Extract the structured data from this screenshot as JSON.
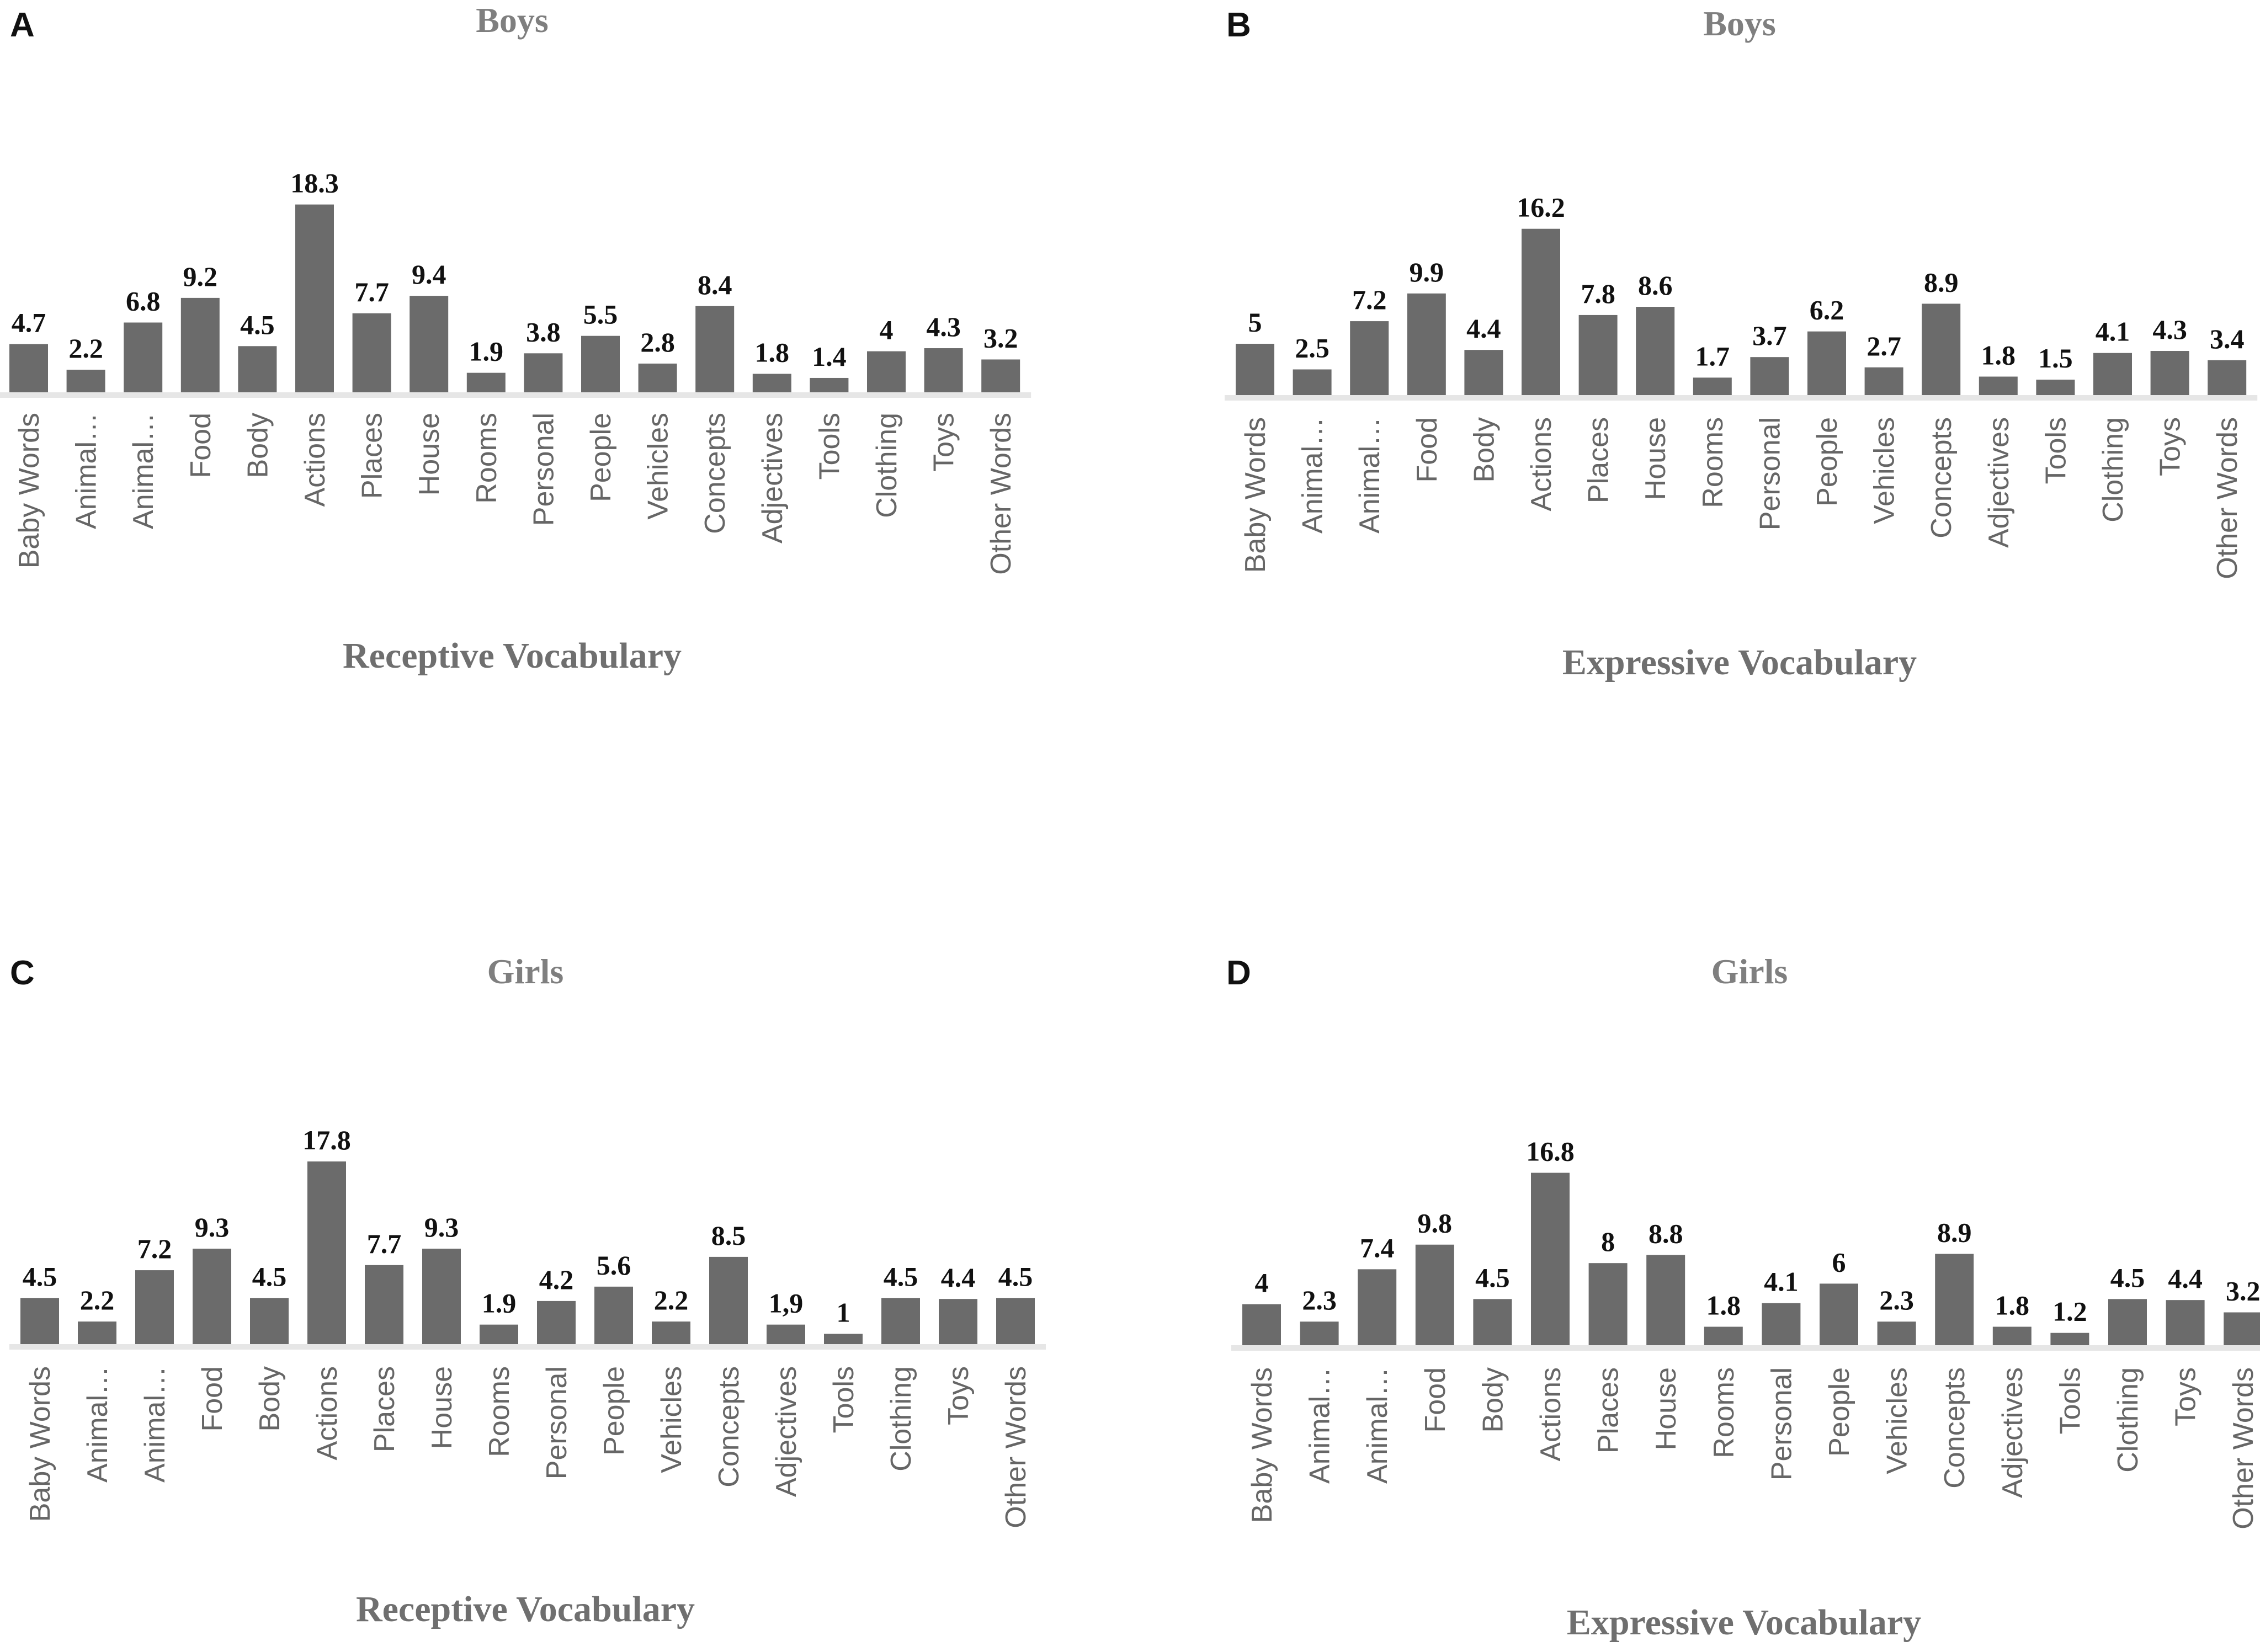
{
  "chart_data": [
    {
      "panel": "A",
      "type": "bar",
      "title": "Boys",
      "xlabel": "Receptive Vocabulary",
      "ylabel": "",
      "categories": [
        "Baby Words",
        "Animal…",
        "Animal…",
        "Food",
        "Body",
        "Actions",
        "Places",
        "House",
        "Rooms",
        "Personal",
        "People",
        "Vehicles",
        "Concepts",
        "Adjectives",
        "Tools",
        "Clothing",
        "Toys",
        "Other Words"
      ],
      "values": [
        4.7,
        2.2,
        6.8,
        9.2,
        4.5,
        18.3,
        7.7,
        9.4,
        1.9,
        3.8,
        5.5,
        2.8,
        8.4,
        1.8,
        1.4,
        4,
        4.3,
        3.2
      ],
      "labels": [
        "4.7",
        "2.2",
        "6.8",
        "9.2",
        "4.5",
        "18.3",
        "7.7",
        "9.4",
        "1.9",
        "3.8",
        "5.5",
        "2.8",
        "8.4",
        "1.8",
        "1.4",
        "4",
        "4.3",
        "3.2"
      ],
      "ylim": [
        0,
        20
      ],
      "grid": false
    },
    {
      "panel": "B",
      "type": "bar",
      "title": "Boys",
      "xlabel": "Expressive Vocabulary",
      "ylabel": "",
      "categories": [
        "Baby Words",
        "Animal…",
        "Animal…",
        "Food",
        "Body",
        "Actions",
        "Places",
        "House",
        "Rooms",
        "Personal",
        "People",
        "Vehicles",
        "Concepts",
        "Adjectives",
        "Tools",
        "Clothing",
        "Toys",
        "Other Words"
      ],
      "values": [
        5,
        2.5,
        7.2,
        9.9,
        4.4,
        16.2,
        7.8,
        8.6,
        1.7,
        3.7,
        6.2,
        2.7,
        8.9,
        1.8,
        1.5,
        4.1,
        4.3,
        3.4
      ],
      "labels": [
        "5",
        "2.5",
        "7.2",
        "9.9",
        "4.4",
        "16.2",
        "7.8",
        "8.6",
        "1.7",
        "3.7",
        "6.2",
        "2.7",
        "8.9",
        "1.8",
        "1.5",
        "4.1",
        "4.3",
        "3.4"
      ],
      "ylim": [
        0,
        20
      ],
      "grid": false
    },
    {
      "panel": "C",
      "type": "bar",
      "title": "Girls",
      "xlabel": "Receptive Vocabulary",
      "ylabel": "",
      "categories": [
        "Baby Words",
        "Animal…",
        "Animal…",
        "Food",
        "Body",
        "Actions",
        "Places",
        "House",
        "Rooms",
        "Personal",
        "People",
        "Vehicles",
        "Concepts",
        "Adjectives",
        "Tools",
        "Clothing",
        "Toys",
        "Other Words"
      ],
      "values": [
        4.5,
        2.2,
        7.2,
        9.3,
        4.5,
        17.8,
        7.7,
        9.3,
        1.9,
        4.2,
        5.6,
        2.2,
        8.5,
        1.9,
        1,
        4.5,
        4.4,
        4.5
      ],
      "labels": [
        "4.5",
        "2.2",
        "7.2",
        "9.3",
        "4.5",
        "17.8",
        "7.7",
        "9.3",
        "1.9",
        "4.2",
        "5.6",
        "2.2",
        "8.5",
        "1,9",
        "1",
        "4.5",
        "4.4",
        "4.5"
      ],
      "ylim": [
        0,
        20
      ],
      "grid": false
    },
    {
      "panel": "D",
      "type": "bar",
      "title": "Girls",
      "xlabel": "Expressive Vocabulary",
      "ylabel": "",
      "categories": [
        "Baby Words",
        "Animal…",
        "Animal…",
        "Food",
        "Body",
        "Actions",
        "Places",
        "House",
        "Rooms",
        "Personal",
        "People",
        "Vehicles",
        "Concepts",
        "Adjectives",
        "Tools",
        "Clothing",
        "Toys",
        "Other Words"
      ],
      "values": [
        4,
        2.3,
        7.4,
        9.8,
        4.5,
        16.8,
        8,
        8.8,
        1.8,
        4.1,
        6,
        2.3,
        8.9,
        1.8,
        1.2,
        4.5,
        4.4,
        3.2
      ],
      "labels": [
        "4",
        "2.3",
        "7.4",
        "9.8",
        "4.5",
        "16.8",
        "8",
        "8.8",
        "1.8",
        "4.1",
        "6",
        "2.3",
        "8.9",
        "1.8",
        "1.2",
        "4.5",
        "4.4",
        "3.2"
      ],
      "ylim": [
        0,
        20
      ],
      "grid": false
    }
  ],
  "colors": {
    "bar": "#6b6b6b",
    "title": "#7f7f7f",
    "value_label": "#111111",
    "category_label": "#666666"
  }
}
